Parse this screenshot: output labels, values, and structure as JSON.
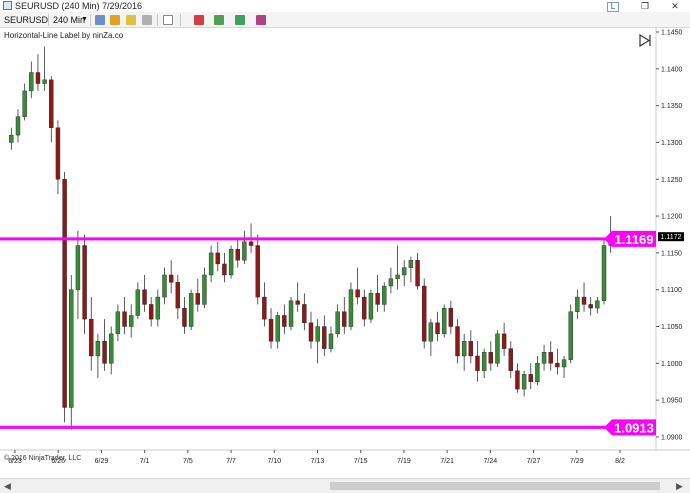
{
  "window": {
    "title": "SEURUSD (240 Min)  7/29/2016",
    "link_label": "L"
  },
  "toolbar": {
    "instrument": "SEURUSD",
    "interval": "240 Min"
  },
  "chart": {
    "indicator_label": "Horizontal-Line Label by ninZa.co",
    "copyright": "© 2016 NinjaTrader, LLC",
    "current_price_label": "1.1172",
    "hlines": [
      {
        "label": "1.1169",
        "value": 1.1169
      },
      {
        "label": "1.0913",
        "value": 1.0913
      }
    ],
    "colors": {
      "up_candle": "#3a8a3a",
      "down_candle": "#8b1a1a",
      "hline": "#ff00ff",
      "label_bg": "#ff00ff"
    }
  },
  "chart_data": {
    "type": "candlestick",
    "ylim": [
      1.0885,
      1.145
    ],
    "y_ticks": [
      "1.1450",
      "1.1400",
      "1.1350",
      "1.1300",
      "1.1250",
      "1.1200",
      "1.1150",
      "1.1100",
      "1.1050",
      "1.1000",
      "1.0950",
      "1.0900"
    ],
    "x_ticks": [
      "6/23",
      "6/26",
      "6/29",
      "7/1",
      "7/5",
      "7/7",
      "7/10",
      "7/13",
      "7/15",
      "7/19",
      "7/21",
      "7/24",
      "7/27",
      "7/29",
      "8/2"
    ],
    "bars": [
      [
        1.13,
        1.132,
        1.129,
        1.131
      ],
      [
        1.131,
        1.1345,
        1.13,
        1.1335
      ],
      [
        1.1335,
        1.138,
        1.133,
        1.137
      ],
      [
        1.137,
        1.141,
        1.136,
        1.1395
      ],
      [
        1.1395,
        1.142,
        1.137,
        1.138
      ],
      [
        1.138,
        1.143,
        1.137,
        1.1385
      ],
      [
        1.1385,
        1.139,
        1.13,
        1.132
      ],
      [
        1.132,
        1.133,
        1.123,
        1.125
      ],
      [
        1.125,
        1.126,
        1.092,
        1.094
      ],
      [
        1.094,
        1.112,
        1.091,
        1.11
      ],
      [
        1.11,
        1.118,
        1.106,
        1.116
      ],
      [
        1.116,
        1.1175,
        1.104,
        1.106
      ],
      [
        1.106,
        1.109,
        1.099,
        1.101
      ],
      [
        1.101,
        1.104,
        1.098,
        1.103
      ],
      [
        1.103,
        1.106,
        1.099,
        1.1
      ],
      [
        1.1,
        1.105,
        1.0985,
        1.104
      ],
      [
        1.104,
        1.108,
        1.103,
        1.107
      ],
      [
        1.107,
        1.109,
        1.104,
        1.105
      ],
      [
        1.105,
        1.108,
        1.1035,
        1.1065
      ],
      [
        1.1065,
        1.111,
        1.106,
        1.11
      ],
      [
        1.11,
        1.112,
        1.107,
        1.108
      ],
      [
        1.108,
        1.109,
        1.105,
        1.106
      ],
      [
        1.106,
        1.11,
        1.105,
        1.109
      ],
      [
        1.109,
        1.113,
        1.108,
        1.112
      ],
      [
        1.112,
        1.114,
        1.1095,
        1.111
      ],
      [
        1.111,
        1.112,
        1.106,
        1.1075
      ],
      [
        1.1075,
        1.109,
        1.104,
        1.105
      ],
      [
        1.105,
        1.11,
        1.1045,
        1.1095
      ],
      [
        1.1095,
        1.1115,
        1.107,
        1.108
      ],
      [
        1.108,
        1.113,
        1.1075,
        1.112
      ],
      [
        1.112,
        1.116,
        1.111,
        1.115
      ],
      [
        1.115,
        1.1165,
        1.1125,
        1.1135
      ],
      [
        1.1135,
        1.115,
        1.111,
        1.112
      ],
      [
        1.112,
        1.116,
        1.1115,
        1.1155
      ],
      [
        1.1155,
        1.117,
        1.113,
        1.114
      ],
      [
        1.114,
        1.118,
        1.1135,
        1.1165
      ],
      [
        1.1165,
        1.119,
        1.115,
        1.116
      ],
      [
        1.116,
        1.1175,
        1.108,
        1.109
      ],
      [
        1.109,
        1.111,
        1.105,
        1.106
      ],
      [
        1.106,
        1.1075,
        1.102,
        1.103
      ],
      [
        1.103,
        1.107,
        1.102,
        1.1065
      ],
      [
        1.1065,
        1.108,
        1.104,
        1.105
      ],
      [
        1.105,
        1.109,
        1.1045,
        1.1085
      ],
      [
        1.1085,
        1.111,
        1.107,
        1.108
      ],
      [
        1.108,
        1.1095,
        1.1045,
        1.1055
      ],
      [
        1.1055,
        1.107,
        1.102,
        1.103
      ],
      [
        1.103,
        1.106,
        1.1,
        1.105
      ],
      [
        1.105,
        1.1065,
        1.101,
        1.102
      ],
      [
        1.102,
        1.105,
        1.1015,
        1.104
      ],
      [
        1.104,
        1.108,
        1.1035,
        1.107
      ],
      [
        1.107,
        1.109,
        1.104,
        1.105
      ],
      [
        1.105,
        1.111,
        1.1045,
        1.11
      ],
      [
        1.11,
        1.113,
        1.108,
        1.109
      ],
      [
        1.109,
        1.11,
        1.105,
        1.106
      ],
      [
        1.106,
        1.11,
        1.1055,
        1.1095
      ],
      [
        1.1095,
        1.112,
        1.107,
        1.108
      ],
      [
        1.108,
        1.111,
        1.107,
        1.1105
      ],
      [
        1.1105,
        1.113,
        1.1095,
        1.1115
      ],
      [
        1.1115,
        1.116,
        1.11,
        1.112
      ],
      [
        1.112,
        1.114,
        1.1105,
        1.113
      ],
      [
        1.113,
        1.1145,
        1.111,
        1.114
      ],
      [
        1.114,
        1.115,
        1.11,
        1.1105
      ],
      [
        1.1105,
        1.1115,
        1.102,
        1.103
      ],
      [
        1.103,
        1.106,
        1.101,
        1.1055
      ],
      [
        1.1055,
        1.107,
        1.103,
        1.104
      ],
      [
        1.104,
        1.108,
        1.1035,
        1.1075
      ],
      [
        1.1075,
        1.1085,
        1.104,
        1.105
      ],
      [
        1.105,
        1.106,
        1.1,
        1.101
      ],
      [
        1.101,
        1.104,
        1.099,
        1.103
      ],
      [
        1.103,
        1.1045,
        1.1,
        1.101
      ],
      [
        1.101,
        1.103,
        1.0975,
        1.099
      ],
      [
        1.099,
        1.102,
        1.098,
        1.1015
      ],
      [
        1.1015,
        1.103,
        1.099,
        1.1
      ],
      [
        1.1,
        1.1045,
        1.0995,
        1.104
      ],
      [
        1.104,
        1.1055,
        1.101,
        1.102
      ],
      [
        1.102,
        1.103,
        1.098,
        1.099
      ],
      [
        1.099,
        1.1,
        1.096,
        1.0965
      ],
      [
        1.0965,
        1.099,
        1.0955,
        1.0985
      ],
      [
        1.0985,
        1.1,
        1.0965,
        1.0975
      ],
      [
        1.0975,
        1.101,
        1.097,
        1.1
      ],
      [
        1.1,
        1.1025,
        1.099,
        1.1015
      ],
      [
        1.1015,
        1.103,
        1.099,
        1.1
      ],
      [
        1.1,
        1.102,
        1.0985,
        1.0995
      ],
      [
        1.0995,
        1.101,
        1.098,
        1.1005
      ],
      [
        1.1005,
        1.108,
        1.1,
        1.107
      ],
      [
        1.107,
        1.11,
        1.106,
        1.109
      ],
      [
        1.109,
        1.111,
        1.107,
        1.108
      ],
      [
        1.108,
        1.109,
        1.1065,
        1.1075
      ],
      [
        1.1075,
        1.109,
        1.1068,
        1.1085
      ],
      [
        1.1085,
        1.117,
        1.108,
        1.116
      ],
      [
        1.116,
        1.12,
        1.115,
        1.1172
      ]
    ]
  }
}
